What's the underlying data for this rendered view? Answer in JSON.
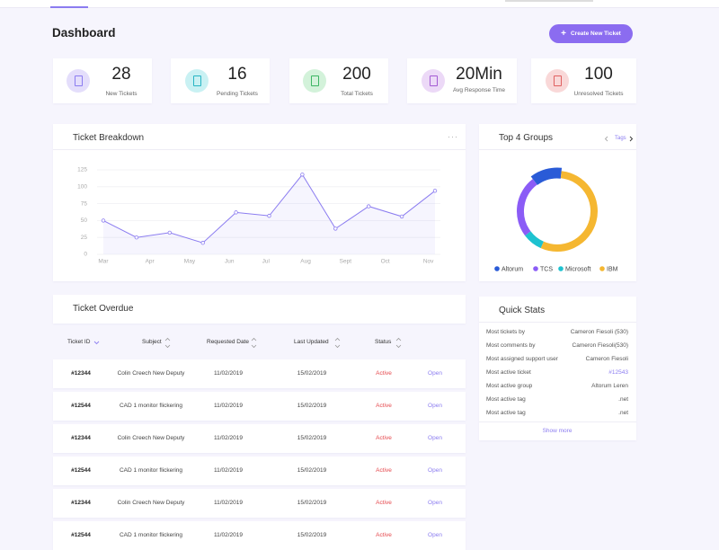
{
  "header": {
    "title": "Dashboard",
    "button": "Create New Ticket"
  },
  "stats": [
    {
      "value": 28,
      "label": "New Tickets"
    },
    {
      "value": 16,
      "label": "Pending Tickets"
    },
    {
      "value": 200,
      "label": "Total Tickets"
    },
    {
      "value": "20Min",
      "label": "Avg Response Time"
    },
    {
      "value": 100,
      "label": "Unresolved Tickets"
    }
  ],
  "chart_data": [
    {
      "type": "line",
      "title": "Ticket Breakdown",
      "x": [
        0,
        1,
        2,
        3,
        4,
        5,
        6,
        7,
        8,
        9,
        10
      ],
      "values": [
        50,
        25,
        32,
        17,
        62,
        57,
        118,
        38,
        71,
        56,
        94
      ],
      "color": "#8b7cf0",
      "xlim": [
        0,
        10
      ],
      "xticks": [
        {
          "value": 0,
          "label": "Mar"
        },
        {
          "value": 1.4,
          "label": "Apr"
        },
        {
          "value": 2.6,
          "label": "May"
        },
        {
          "value": 3.8,
          "label": "Jun"
        },
        {
          "value": 4.9,
          "label": "Jul"
        },
        {
          "value": 6.1,
          "label": "Aug"
        },
        {
          "value": 7.3,
          "label": "Sept"
        },
        {
          "value": 8.5,
          "label": "Oct"
        },
        {
          "value": 9.8,
          "label": "Nov"
        }
      ],
      "ylim": [
        0,
        125
      ],
      "yticks": [
        0,
        25,
        50,
        75,
        100,
        125
      ],
      "grid": true
    },
    {
      "type": "pie",
      "title": "Top 4 Groups",
      "link": "Tags",
      "categories": [
        "Altorum",
        "TCS",
        "Microsoft",
        "IBM"
      ],
      "values": [
        12,
        25,
        8,
        55
      ],
      "colors": [
        "#2a5bd7",
        "#8b5cf6",
        "#1ec2d0",
        "#f5b731"
      ],
      "legend": "bottom"
    }
  ],
  "table": {
    "title": "Ticket Overdue",
    "columns": [
      "Ticket ID",
      "Subject",
      "Requested Date",
      "Last Updated",
      "Status"
    ],
    "rows": [
      [
        "#12344",
        "Colin Creech New Deputy",
        "11/02/2019",
        "15/02/2019",
        "Active",
        "Open"
      ],
      [
        "#12544",
        "CAD 1 monitor flickering",
        "11/02/2019",
        "15/02/2019",
        "Active",
        "Open"
      ],
      [
        "#12344",
        "Colin Creech New Deputy",
        "11/02/2019",
        "15/02/2019",
        "Active",
        "Open"
      ],
      [
        "#12544",
        "CAD 1 monitor flickering",
        "11/02/2019",
        "15/02/2019",
        "Active",
        "Open"
      ],
      [
        "#12344",
        "Colin Creech New Deputy",
        "11/02/2019",
        "15/02/2019",
        "Active",
        "Open"
      ],
      [
        "#12544",
        "CAD 1 monitor flickering",
        "11/02/2019",
        "15/02/2019",
        "Active",
        "Open"
      ]
    ]
  },
  "quick_stats": {
    "title": "Quick Stats",
    "rows": [
      [
        "Most tickets by",
        "Cameron Fiesoli (530)"
      ],
      [
        "Most comments by",
        "Cameron Fiesoli(530)"
      ],
      [
        "Most assigned support user",
        "Cameron Fiesoli"
      ],
      [
        "Most active ticket",
        "#12543"
      ],
      [
        "Most active group",
        "Altorum Leren"
      ],
      [
        "Most active tag",
        ".net"
      ],
      [
        "Most active tag",
        ".net"
      ]
    ],
    "more": "Show more"
  }
}
